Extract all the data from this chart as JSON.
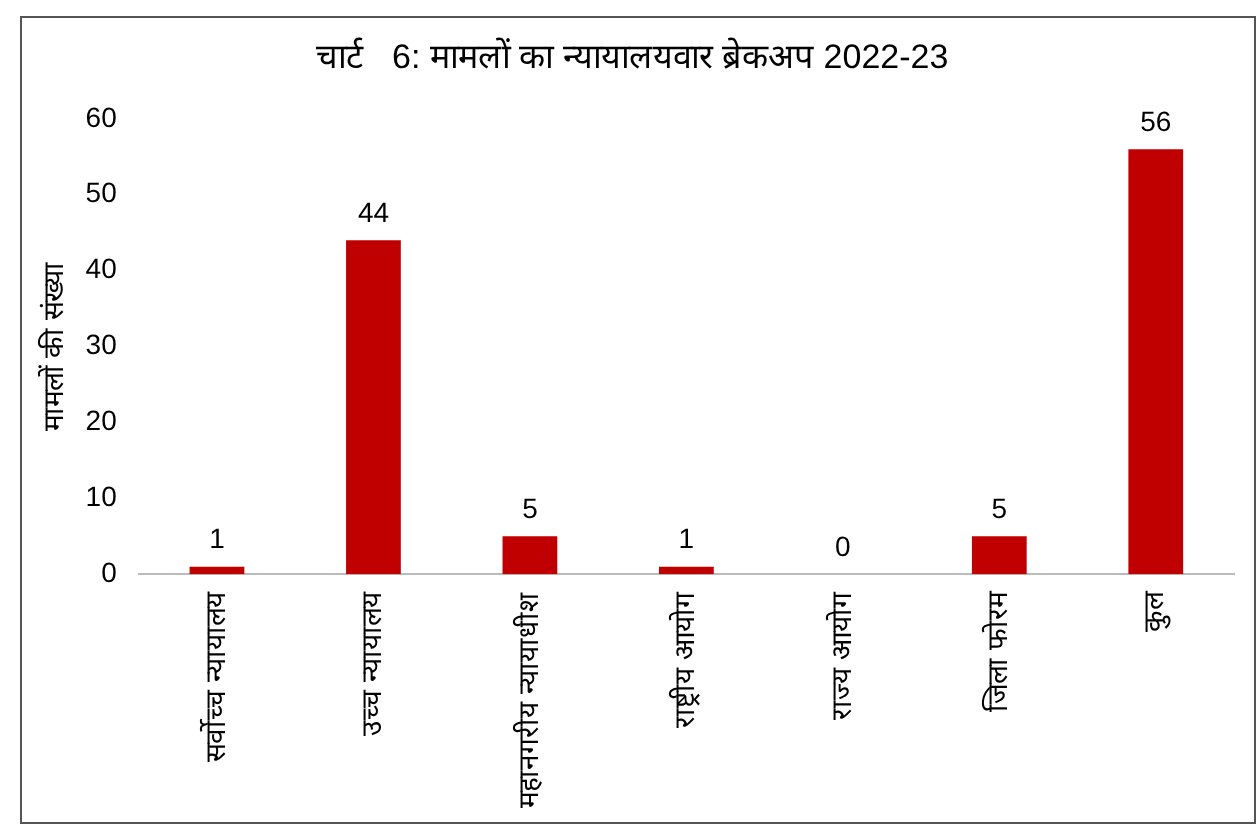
{
  "chart_data": {
    "type": "bar",
    "title": "चार्ट   6: मामलों का न्यायालयवार ब्रेकअप 2022-23",
    "ylabel": "मामलों की संख्या",
    "categories": [
      "सर्वोच्च न्यायालय",
      "उच्च न्यायालय",
      "महानगरीय न्यायाधीश",
      "राष्ट्रीय आयोग",
      "राज्य आयोग",
      "जिला फोरम",
      "कुल"
    ],
    "values": [
      1,
      44,
      5,
      1,
      0,
      5,
      56
    ],
    "color": "#c00000",
    "ylim": [
      0,
      60
    ],
    "yticks": [
      0,
      10,
      20,
      30,
      40,
      50,
      60
    ],
    "grid": false,
    "data_labels": true,
    "legend": false
  }
}
